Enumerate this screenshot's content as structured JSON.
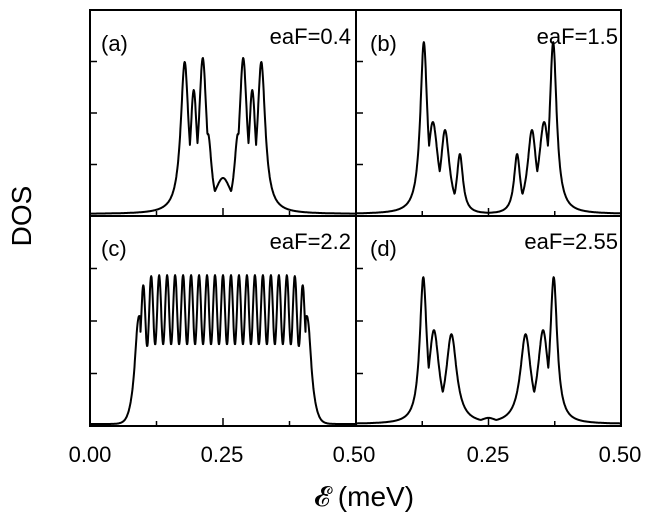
{
  "chart_data": {
    "type": "line",
    "xlabel": "𝓔 (meV)",
    "ylabel": "DOS",
    "xlim": [
      0.0,
      0.5
    ],
    "x_tick_labels": [
      "0.00",
      "0.25",
      "0.50",
      "0.25",
      "0.50"
    ],
    "panels": [
      {
        "tag": "(a)",
        "field": "eaF=0.4",
        "peaks": [
          {
            "x": 0.178,
            "h": 0.76,
            "w": 0.009
          },
          {
            "x": 0.195,
            "h": 0.62,
            "w": 0.008
          },
          {
            "x": 0.212,
            "h": 0.78,
            "w": 0.009
          },
          {
            "x": 0.222,
            "h": 0.4,
            "w": 0.008
          },
          {
            "x": 0.25,
            "h": 0.18,
            "w": 0.02
          },
          {
            "x": 0.278,
            "h": 0.4,
            "w": 0.008
          },
          {
            "x": 0.288,
            "h": 0.78,
            "w": 0.009
          },
          {
            "x": 0.305,
            "h": 0.62,
            "w": 0.008
          },
          {
            "x": 0.322,
            "h": 0.76,
            "w": 0.009
          }
        ]
      },
      {
        "tag": "(b)",
        "field": "eaF=1.5",
        "peaks": [
          {
            "x": 0.128,
            "h": 0.86,
            "w": 0.008
          },
          {
            "x": 0.145,
            "h": 0.46,
            "w": 0.012
          },
          {
            "x": 0.168,
            "h": 0.42,
            "w": 0.01
          },
          {
            "x": 0.196,
            "h": 0.3,
            "w": 0.007
          },
          {
            "x": 0.304,
            "h": 0.3,
            "w": 0.007
          },
          {
            "x": 0.332,
            "h": 0.42,
            "w": 0.01
          },
          {
            "x": 0.355,
            "h": 0.46,
            "w": 0.012
          },
          {
            "x": 0.372,
            "h": 0.86,
            "w": 0.008
          }
        ]
      },
      {
        "tag": "(c)",
        "field": "eaF=2.2",
        "band": {
          "start": 0.085,
          "end": 0.415,
          "level": 0.56,
          "edge_peak": 0.73,
          "ripple": 0.17,
          "oscillations": 22
        }
      },
      {
        "tag": "(d)",
        "field": "eaF=2.55",
        "peaks": [
          {
            "x": 0.127,
            "h": 0.72,
            "w": 0.008
          },
          {
            "x": 0.147,
            "h": 0.46,
            "w": 0.012
          },
          {
            "x": 0.18,
            "h": 0.44,
            "w": 0.012
          },
          {
            "x": 0.25,
            "h": 0.03,
            "w": 0.02
          },
          {
            "x": 0.32,
            "h": 0.44,
            "w": 0.012
          },
          {
            "x": 0.353,
            "h": 0.46,
            "w": 0.012
          },
          {
            "x": 0.373,
            "h": 0.72,
            "w": 0.008
          }
        ]
      }
    ]
  }
}
